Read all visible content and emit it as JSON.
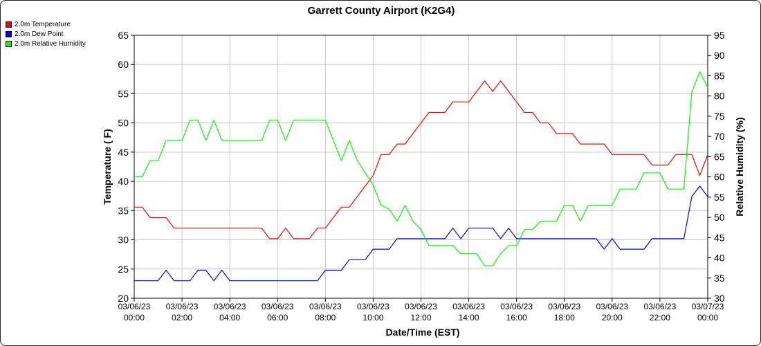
{
  "chart_data": {
    "type": "line",
    "title": "Garrett County Airport (K2G4)",
    "xlabel": "Date/Time (EST)",
    "ylabel": "Temperature ( F)",
    "y2label": "Relative Humidity (%)",
    "ylim": [
      20,
      65
    ],
    "y2lim": [
      30,
      95
    ],
    "yticks": [
      20,
      25,
      30,
      35,
      40,
      45,
      50,
      55,
      60,
      65
    ],
    "y2ticks": [
      30,
      35,
      40,
      45,
      50,
      55,
      60,
      65,
      70,
      75,
      80,
      85,
      90,
      95
    ],
    "xlim": [
      "03/06/23 00:00",
      "03/07/23 00:00"
    ],
    "xticks": [
      {
        "date": "03/06/23",
        "time": "00:00"
      },
      {
        "date": "03/06/23",
        "time": "02:00"
      },
      {
        "date": "03/06/23",
        "time": "04:00"
      },
      {
        "date": "03/06/23",
        "time": "06:00"
      },
      {
        "date": "03/06/23",
        "time": "08:00"
      },
      {
        "date": "03/06/23",
        "time": "10:00"
      },
      {
        "date": "03/06/23",
        "time": "12:00"
      },
      {
        "date": "03/06/23",
        "time": "14:00"
      },
      {
        "date": "03/06/23",
        "time": "16:00"
      },
      {
        "date": "03/06/23",
        "time": "18:00"
      },
      {
        "date": "03/06/23",
        "time": "20:00"
      },
      {
        "date": "03/06/23",
        "time": "22:00"
      },
      {
        "date": "03/07/23",
        "time": "00:00"
      }
    ],
    "grid": true,
    "legend_position": "top-left",
    "series": [
      {
        "name": "2.0m Temperature",
        "color": "#ff0000",
        "axis": "left",
        "x": [
          "00:00",
          "00:20",
          "00:40",
          "01:00",
          "01:20",
          "01:40",
          "02:00",
          "02:20",
          "02:40",
          "03:00",
          "03:20",
          "03:40",
          "04:00",
          "04:20",
          "04:40",
          "05:00",
          "05:20",
          "05:40",
          "06:00",
          "06:20",
          "06:40",
          "07:00",
          "07:20",
          "07:40",
          "08:00",
          "08:20",
          "08:40",
          "09:00",
          "09:20",
          "09:40",
          "10:00",
          "10:20",
          "10:40",
          "11:00",
          "11:20",
          "11:40",
          "12:00",
          "12:20",
          "12:40",
          "13:00",
          "13:20",
          "13:40",
          "14:00",
          "14:20",
          "14:40",
          "15:00",
          "15:20",
          "15:40",
          "16:00",
          "16:20",
          "16:40",
          "17:00",
          "17:20",
          "17:40",
          "18:00",
          "18:20",
          "18:40",
          "19:00",
          "19:20",
          "19:40",
          "20:00",
          "20:20",
          "20:40",
          "21:00",
          "21:20",
          "21:40",
          "22:00",
          "22:20",
          "22:40",
          "23:00",
          "23:20",
          "23:40",
          "24:00"
        ],
        "values": [
          35.6,
          35.6,
          33.8,
          33.8,
          33.8,
          32.0,
          32.0,
          32.0,
          32.0,
          32.0,
          32.0,
          32.0,
          32.0,
          32.0,
          32.0,
          32.0,
          32.0,
          30.2,
          30.2,
          32.0,
          30.2,
          30.2,
          30.2,
          32.0,
          32.0,
          33.8,
          35.6,
          35.6,
          37.4,
          39.2,
          41.0,
          44.6,
          44.6,
          46.4,
          46.4,
          48.2,
          50.0,
          51.8,
          51.8,
          51.8,
          53.6,
          53.6,
          53.6,
          55.4,
          57.2,
          55.4,
          57.2,
          55.4,
          53.6,
          51.8,
          51.8,
          50.0,
          50.0,
          48.2,
          48.2,
          48.2,
          46.4,
          46.4,
          46.4,
          46.4,
          44.6,
          44.6,
          44.6,
          44.6,
          44.6,
          42.8,
          42.8,
          42.8,
          44.6,
          44.6,
          44.6,
          41.0,
          44.6
        ]
      },
      {
        "name": "2.0m Dew Point",
        "color": "#0000ff",
        "axis": "left",
        "x": [
          "00:00",
          "00:20",
          "00:40",
          "01:00",
          "01:20",
          "01:40",
          "02:00",
          "02:20",
          "02:40",
          "03:00",
          "03:20",
          "03:40",
          "04:00",
          "04:20",
          "04:40",
          "05:00",
          "05:20",
          "05:40",
          "06:00",
          "06:20",
          "06:40",
          "07:00",
          "07:20",
          "07:40",
          "08:00",
          "08:20",
          "08:40",
          "09:00",
          "09:20",
          "09:40",
          "10:00",
          "10:20",
          "10:40",
          "11:00",
          "11:20",
          "11:40",
          "12:00",
          "12:20",
          "12:40",
          "13:00",
          "13:20",
          "13:40",
          "14:00",
          "14:20",
          "14:40",
          "15:00",
          "15:20",
          "15:40",
          "16:00",
          "16:20",
          "16:40",
          "17:00",
          "17:20",
          "17:40",
          "18:00",
          "18:20",
          "18:40",
          "19:00",
          "19:20",
          "19:40",
          "20:00",
          "20:20",
          "20:40",
          "21:00",
          "21:20",
          "21:40",
          "22:00",
          "22:20",
          "22:40",
          "23:00",
          "23:20",
          "23:40",
          "24:00"
        ],
        "values": [
          23.0,
          23.0,
          23.0,
          23.0,
          24.8,
          23.0,
          23.0,
          23.0,
          24.8,
          24.8,
          23.0,
          24.8,
          23.0,
          23.0,
          23.0,
          23.0,
          23.0,
          23.0,
          23.0,
          23.0,
          23.0,
          23.0,
          23.0,
          23.0,
          24.8,
          24.8,
          24.8,
          26.6,
          26.6,
          26.6,
          28.4,
          28.4,
          28.4,
          30.2,
          30.2,
          30.2,
          30.2,
          30.2,
          30.2,
          30.2,
          32.0,
          30.2,
          32.0,
          32.0,
          32.0,
          32.0,
          30.2,
          32.0,
          30.2,
          30.2,
          30.2,
          30.2,
          30.2,
          30.2,
          30.2,
          30.2,
          30.2,
          30.2,
          30.2,
          28.4,
          30.2,
          28.4,
          28.4,
          28.4,
          28.4,
          30.2,
          30.2,
          30.2,
          30.2,
          30.2,
          37.4,
          39.2,
          37.4
        ]
      },
      {
        "name": "2.0m Relative Humidity",
        "color": "#00ff00",
        "axis": "right",
        "x": [
          "00:00",
          "00:20",
          "00:40",
          "01:00",
          "01:20",
          "01:40",
          "02:00",
          "02:20",
          "02:40",
          "03:00",
          "03:20",
          "03:40",
          "04:00",
          "04:20",
          "04:40",
          "05:00",
          "05:20",
          "05:40",
          "06:00",
          "06:20",
          "06:40",
          "07:00",
          "07:20",
          "07:40",
          "08:00",
          "08:20",
          "08:40",
          "09:00",
          "09:20",
          "09:40",
          "10:00",
          "10:20",
          "10:40",
          "11:00",
          "11:20",
          "11:40",
          "12:00",
          "12:20",
          "12:40",
          "13:00",
          "13:20",
          "13:40",
          "14:00",
          "14:20",
          "14:40",
          "15:00",
          "15:20",
          "15:40",
          "16:00",
          "16:20",
          "16:40",
          "17:00",
          "17:20",
          "17:40",
          "18:00",
          "18:20",
          "18:40",
          "19:00",
          "19:20",
          "19:40",
          "20:00",
          "20:20",
          "20:40",
          "21:00",
          "21:20",
          "21:40",
          "22:00",
          "22:20",
          "22:40",
          "23:00",
          "23:20",
          "23:40",
          "24:00"
        ],
        "values": [
          60,
          60,
          64,
          64,
          69,
          69,
          69,
          74,
          74,
          69,
          74,
          69,
          69,
          69,
          69,
          69,
          69,
          74,
          74,
          69,
          74,
          74,
          74,
          74,
          74,
          69,
          64,
          69,
          64,
          61,
          58,
          53,
          52,
          49,
          53,
          49,
          47,
          43,
          43,
          43,
          43,
          41,
          41,
          41,
          38,
          38,
          41,
          43,
          43,
          47,
          47,
          49,
          49,
          49,
          53,
          53,
          49,
          53,
          53,
          53,
          53,
          57,
          57,
          57,
          61,
          61,
          61,
          57,
          57,
          57,
          81,
          86,
          82
        ]
      }
    ]
  }
}
